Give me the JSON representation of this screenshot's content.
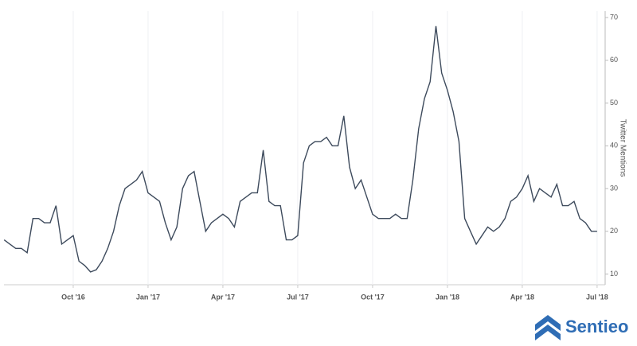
{
  "chart_data": {
    "type": "line",
    "y_axis_label": "Twitter Mentions",
    "logo": "Sentieo",
    "categories": [
      null,
      null,
      null,
      null,
      null,
      null,
      null,
      null,
      null,
      null,
      null,
      null,
      "Oct '16",
      null,
      null,
      null,
      null,
      null,
      null,
      null,
      null,
      null,
      null,
      null,
      null,
      "Jan '17",
      null,
      null,
      null,
      null,
      null,
      null,
      null,
      null,
      null,
      null,
      null,
      null,
      "Apr '17",
      null,
      null,
      null,
      null,
      null,
      null,
      null,
      null,
      null,
      null,
      null,
      null,
      "Jul '17",
      null,
      null,
      null,
      null,
      null,
      null,
      null,
      null,
      null,
      null,
      null,
      null,
      "Oct '17",
      null,
      null,
      null,
      null,
      null,
      null,
      null,
      null,
      null,
      null,
      null,
      null,
      "Jan '18",
      null,
      null,
      null,
      null,
      null,
      null,
      null,
      null,
      null,
      null,
      null,
      null,
      "Apr '18",
      null,
      null,
      null,
      null,
      null,
      null,
      null,
      null,
      null,
      null,
      null,
      null,
      "Jul '18"
    ],
    "series": [
      {
        "name": "Twitter Mentions",
        "color": "#3d4a5c",
        "values": [
          18,
          17,
          16,
          16,
          15,
          23,
          23,
          22,
          22,
          26,
          17,
          18,
          19,
          13,
          12,
          10.5,
          11,
          13,
          16,
          20,
          26,
          30,
          31,
          32,
          34,
          29,
          28,
          27,
          22,
          18,
          21,
          30,
          33,
          34,
          27,
          20,
          22,
          23,
          24,
          23,
          21,
          27,
          28,
          29,
          29,
          39,
          27,
          26,
          26,
          18,
          18,
          19,
          36,
          40,
          41,
          41,
          42,
          40,
          40,
          47,
          35,
          30,
          32,
          28,
          24,
          23,
          23,
          23,
          24,
          23,
          23,
          32,
          44,
          51,
          55,
          68,
          57,
          53,
          48,
          41,
          23,
          20,
          17,
          19,
          21,
          20,
          21,
          23,
          27,
          28,
          30,
          33,
          27,
          30,
          29,
          28,
          31,
          26,
          26,
          27,
          23,
          22,
          20,
          20
        ]
      }
    ],
    "ylim": [
      7.5,
      71.5
    ],
    "yticks": [
      10,
      20,
      30,
      40,
      50,
      60,
      70
    ],
    "grid": true
  }
}
